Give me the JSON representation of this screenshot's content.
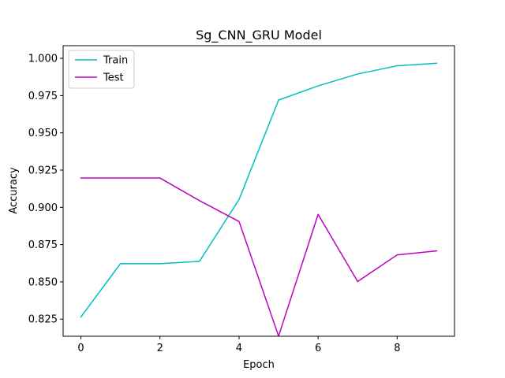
{
  "chart_data": {
    "type": "line",
    "title": "Sg_CNN_GRU Model",
    "xlabel": "Epoch",
    "ylabel": "Accuracy",
    "x": [
      0,
      1,
      2,
      3,
      4,
      5,
      6,
      7,
      8,
      9
    ],
    "xlim": [
      -0.45,
      9.45
    ],
    "ylim": [
      0.8135,
      1.0085
    ],
    "xticks": [
      0,
      2,
      4,
      6,
      8
    ],
    "yticks": [
      0.825,
      0.85,
      0.875,
      0.9,
      0.925,
      0.95,
      0.975,
      1.0
    ],
    "ytick_labels": [
      "0.825",
      "0.850",
      "0.875",
      "0.900",
      "0.925",
      "0.950",
      "0.975",
      "1.000"
    ],
    "grid": false,
    "legend": {
      "position": "top-left"
    },
    "series": [
      {
        "name": "Train",
        "color": "#00bfbf",
        "values": [
          0.8265,
          0.8622,
          0.8622,
          0.8638,
          0.9053,
          0.972,
          0.9815,
          0.9895,
          0.995,
          0.9967
        ]
      },
      {
        "name": "Test",
        "color": "#bf00bf",
        "values": [
          0.9197,
          0.9197,
          0.9197,
          0.9045,
          0.8905,
          0.8136,
          0.8953,
          0.8502,
          0.8681,
          0.8708
        ]
      }
    ]
  }
}
